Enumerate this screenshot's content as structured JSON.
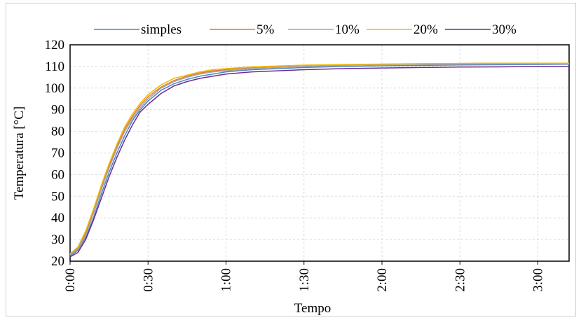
{
  "chart_data": {
    "type": "line",
    "xlabel": "Tempo",
    "ylabel": "Temperatura [°C]",
    "xlim": [
      "0:00",
      "3:12"
    ],
    "ylim": [
      20,
      120
    ],
    "y_ticks": [
      20,
      30,
      40,
      50,
      60,
      70,
      80,
      90,
      100,
      110,
      120
    ],
    "x_ticks": [
      "0:00",
      "0:30",
      "1:00",
      "1:30",
      "2:00",
      "2:30",
      "3:00"
    ],
    "grid": true,
    "legend_position": "top",
    "series": [
      {
        "name": "simples",
        "color": "#4a86c8",
        "x": [
          "0:00",
          "0:03",
          "0:06",
          "0:09",
          "0:12",
          "0:15",
          "0:18",
          "0:21",
          "0:24",
          "0:27",
          "0:30",
          "0:35",
          "0:40",
          "0:45",
          "0:50",
          "0:55",
          "1:00",
          "1:10",
          "1:20",
          "1:30",
          "1:45",
          "2:00",
          "2:15",
          "2:30",
          "2:45",
          "3:00",
          "3:12"
        ],
        "y": [
          22.5,
          25,
          31,
          40,
          51,
          61,
          70,
          78,
          85,
          90,
          94,
          99,
          102,
          104,
          105.5,
          106.5,
          107.5,
          108.5,
          109,
          109.5,
          110,
          110.3,
          110.5,
          110.7,
          110.8,
          110.9,
          111
        ]
      },
      {
        "name": "5%",
        "color": "#e07b39",
        "x": [
          "0:00",
          "0:03",
          "0:06",
          "0:09",
          "0:12",
          "0:15",
          "0:18",
          "0:21",
          "0:24",
          "0:27",
          "0:30",
          "0:35",
          "0:40",
          "0:45",
          "0:50",
          "0:55",
          "1:00",
          "1:10",
          "1:20",
          "1:30",
          "1:45",
          "2:00",
          "2:15",
          "2:30",
          "2:45",
          "3:00",
          "3:12"
        ],
        "y": [
          23,
          26,
          33,
          43,
          54,
          64,
          73,
          81,
          87,
          92,
          96,
          100.5,
          103.5,
          105.5,
          107,
          108,
          108.5,
          109.5,
          110,
          110.5,
          110.8,
          111,
          111.2,
          111.4,
          111.5,
          111.5,
          111.5
        ]
      },
      {
        "name": "10%",
        "color": "#a5a5a5",
        "x": [
          "0:00",
          "0:03",
          "0:06",
          "0:09",
          "0:12",
          "0:15",
          "0:18",
          "0:21",
          "0:24",
          "0:27",
          "0:30",
          "0:35",
          "0:40",
          "0:45",
          "0:50",
          "0:55",
          "1:00",
          "1:10",
          "1:20",
          "1:30",
          "1:45",
          "2:00",
          "2:15",
          "2:30",
          "2:45",
          "3:00",
          "3:12"
        ],
        "y": [
          23,
          25.5,
          32,
          42,
          53,
          63,
          72,
          80,
          86,
          91,
          95,
          100,
          103,
          105,
          106.5,
          107.5,
          108,
          109,
          109.5,
          110,
          110.5,
          110.8,
          111,
          111.1,
          111.2,
          111.2,
          111.2
        ]
      },
      {
        "name": "20%",
        "color": "#f2b800",
        "x": [
          "0:00",
          "0:03",
          "0:06",
          "0:09",
          "0:12",
          "0:15",
          "0:18",
          "0:21",
          "0:24",
          "0:27",
          "0:30",
          "0:35",
          "0:40",
          "0:45",
          "0:50",
          "0:55",
          "1:00",
          "1:10",
          "1:20",
          "1:30",
          "1:45",
          "2:00",
          "2:15",
          "2:30",
          "2:45",
          "3:00",
          "3:12"
        ],
        "y": [
          23.5,
          26.5,
          34,
          44,
          55,
          65,
          74,
          82,
          88,
          93,
          97,
          101.5,
          104.5,
          106,
          107.5,
          108.5,
          109,
          109.8,
          110.2,
          110.6,
          110.9,
          111.1,
          111.3,
          111.4,
          111.5,
          111.5,
          111.5
        ]
      },
      {
        "name": "30%",
        "color": "#6a2c91",
        "x": [
          "0:00",
          "0:03",
          "0:06",
          "0:09",
          "0:12",
          "0:15",
          "0:18",
          "0:21",
          "0:24",
          "0:27",
          "0:30",
          "0:35",
          "0:40",
          "0:45",
          "0:50",
          "0:55",
          "1:00",
          "1:10",
          "1:20",
          "1:30",
          "1:45",
          "2:00",
          "2:15",
          "2:30",
          "2:45",
          "3:00",
          "3:12"
        ],
        "y": [
          22,
          24,
          30,
          39,
          49,
          59,
          68,
          76,
          83,
          89,
          92.5,
          97.5,
          101,
          103,
          104.5,
          105.5,
          106.5,
          107.5,
          108,
          108.5,
          109,
          109.3,
          109.5,
          109.7,
          109.8,
          110,
          110
        ]
      }
    ]
  }
}
